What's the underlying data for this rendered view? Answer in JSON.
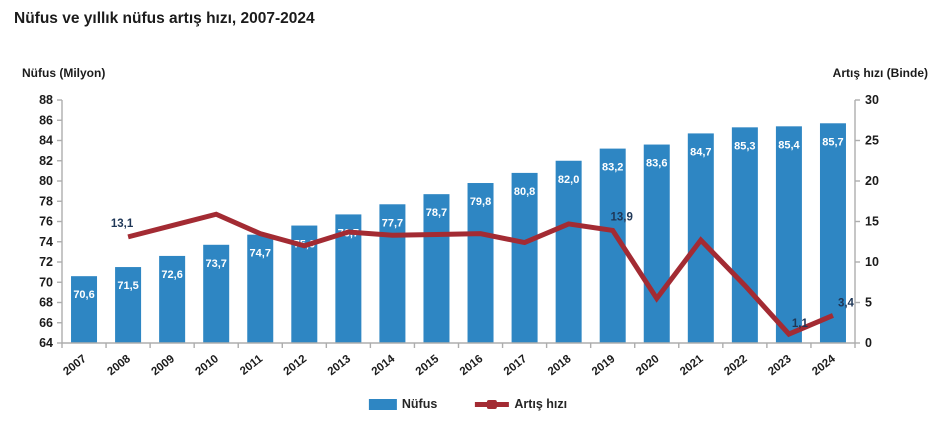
{
  "title": "Nüfus ve yıllık nüfus artış hızı, 2007-2024",
  "left_axis_title": "Nüfus (Milyon)",
  "right_axis_title": "Artış hızı (Binde)",
  "legend": {
    "bar_label": "Nüfus",
    "line_label": "Artış hızı"
  },
  "colors": {
    "bar": "#2E86C3",
    "line": "#A32B33",
    "bar_value_label": "#FFFFFF",
    "line_value_label": "#1F3757",
    "axis": "#ADADAD",
    "text": "#1B1B1B"
  },
  "chart_data": {
    "type": "combo-bar-line",
    "categories": [
      "2007",
      "2008",
      "2009",
      "2010",
      "2011",
      "2012",
      "2013",
      "2014",
      "2015",
      "2016",
      "2017",
      "2018",
      "2019",
      "2020",
      "2021",
      "2022",
      "2023",
      "2024"
    ],
    "series": [
      {
        "name": "Nüfus",
        "type": "bar",
        "axis": "left",
        "values": [
          70.6,
          71.5,
          72.6,
          73.7,
          74.7,
          75.6,
          76.7,
          77.7,
          78.7,
          79.8,
          80.8,
          82.0,
          83.2,
          83.6,
          84.7,
          85.3,
          85.4,
          85.7
        ]
      },
      {
        "name": "Artış hızı",
        "type": "line",
        "axis": "right",
        "values": [
          null,
          13.1,
          14.5,
          15.9,
          13.5,
          12.0,
          13.7,
          13.3,
          13.4,
          13.5,
          12.4,
          14.7,
          13.9,
          5.5,
          12.7,
          7.1,
          1.1,
          3.4
        ],
        "labeled_years": [
          "2008",
          "2019",
          "2023",
          "2024"
        ]
      }
    ],
    "left_axis": {
      "label": "Nüfus (Milyon)",
      "min": 64,
      "max": 88,
      "step": 2
    },
    "right_axis": {
      "label": "Artış hızı (Binde)",
      "min": 0,
      "max": 30,
      "step": 5
    },
    "grid": false,
    "legend_position": "bottom",
    "decimal_separator": ","
  }
}
